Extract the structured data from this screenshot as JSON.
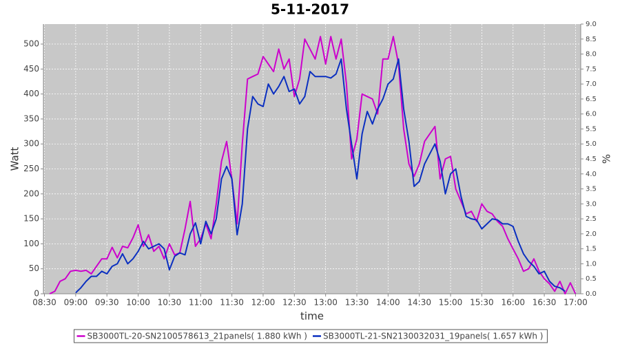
{
  "chart_data": {
    "type": "line",
    "title": "5-11-2017",
    "x_label": "time",
    "y_label": "Watt",
    "y2_label": "%",
    "x": [
      "08:35",
      "08:40",
      "08:45",
      "08:50",
      "08:55",
      "09:00",
      "09:05",
      "09:10",
      "09:15",
      "09:20",
      "09:25",
      "09:30",
      "09:35",
      "09:40",
      "09:45",
      "09:50",
      "09:55",
      "10:00",
      "10:05",
      "10:10",
      "10:15",
      "10:20",
      "10:25",
      "10:30",
      "10:35",
      "10:40",
      "10:45",
      "10:50",
      "10:55",
      "11:00",
      "11:05",
      "11:10",
      "11:15",
      "11:20",
      "11:25",
      "11:30",
      "11:35",
      "11:40",
      "11:45",
      "11:50",
      "11:55",
      "12:00",
      "12:05",
      "12:10",
      "12:15",
      "12:20",
      "12:25",
      "12:30",
      "12:35",
      "12:40",
      "12:45",
      "12:50",
      "12:55",
      "13:00",
      "13:05",
      "13:10",
      "13:15",
      "13:20",
      "13:25",
      "13:30",
      "13:35",
      "13:40",
      "13:45",
      "13:50",
      "13:55",
      "14:00",
      "14:05",
      "14:10",
      "14:15",
      "14:20",
      "14:25",
      "14:30",
      "14:35",
      "14:40",
      "14:45",
      "14:50",
      "14:55",
      "15:00",
      "15:05",
      "15:10",
      "15:15",
      "15:20",
      "15:25",
      "15:30",
      "15:35",
      "15:40",
      "15:45",
      "15:50",
      "15:55",
      "16:00",
      "16:05",
      "16:10",
      "16:15",
      "16:20",
      "16:25",
      "16:30",
      "16:35",
      "16:40",
      "16:45",
      "16:50",
      "16:55",
      "17:00"
    ],
    "series": [
      {
        "name": "SB3000TL-20-SN2100578613_21panels( 1.880 kWh )",
        "color": "#cc00cc",
        "values": [
          0,
          5,
          25,
          30,
          45,
          47,
          45,
          47,
          40,
          55,
          70,
          70,
          93,
          72,
          95,
          92,
          112,
          138,
          95,
          118,
          85,
          95,
          70,
          100,
          78,
          82,
          130,
          185,
          95,
          110,
          140,
          110,
          180,
          265,
          305,
          230,
          140,
          300,
          430,
          435,
          440,
          475,
          460,
          445,
          490,
          450,
          470,
          395,
          430,
          510,
          490,
          470,
          515,
          460,
          515,
          470,
          510,
          420,
          270,
          310,
          400,
          395,
          390,
          360,
          470,
          470,
          515,
          460,
          330,
          260,
          235,
          260,
          305,
          320,
          335,
          230,
          270,
          275,
          210,
          185,
          160,
          165,
          145,
          180,
          165,
          160,
          145,
          135,
          110,
          90,
          70,
          45,
          50,
          70,
          45,
          30,
          20,
          5,
          25,
          0,
          22,
          0
        ]
      },
      {
        "name": "SB3000TL-21-SN2130032031_19panels( 1.657 kWh )",
        "color": "#0a2fc0",
        "values": [
          null,
          null,
          null,
          null,
          null,
          2,
          12,
          25,
          35,
          35,
          45,
          40,
          55,
          60,
          80,
          60,
          70,
          85,
          105,
          90,
          95,
          100,
          90,
          48,
          75,
          82,
          78,
          120,
          142,
          100,
          145,
          120,
          150,
          230,
          255,
          230,
          118,
          180,
          330,
          395,
          380,
          375,
          420,
          400,
          415,
          435,
          405,
          410,
          380,
          395,
          445,
          435,
          435,
          435,
          432,
          440,
          470,
          370,
          300,
          230,
          320,
          365,
          340,
          370,
          390,
          420,
          430,
          470,
          370,
          305,
          215,
          225,
          260,
          280,
          300,
          265,
          200,
          240,
          250,
          195,
          155,
          150,
          148,
          130,
          140,
          150,
          148,
          140,
          140,
          135,
          105,
          80,
          65,
          55,
          40,
          45,
          25,
          15,
          12,
          5,
          null,
          null
        ]
      }
    ],
    "xlim": [
      "08:29",
      "17:05"
    ],
    "xticks": [
      "08:30",
      "09:00",
      "09:30",
      "10:00",
      "10:30",
      "11:00",
      "11:30",
      "12:00",
      "12:30",
      "13:00",
      "13:30",
      "14:00",
      "14:30",
      "15:00",
      "15:30",
      "16:00",
      "16:30",
      "17:00"
    ],
    "ylim": [
      0,
      540
    ],
    "yticks": [
      0,
      50,
      100,
      150,
      200,
      250,
      300,
      350,
      400,
      450,
      500
    ],
    "y2lim": [
      0,
      9
    ],
    "y2ticks": [
      {
        "value": 0,
        "label": "0.0"
      },
      0.5,
      {
        "value": 1,
        "label": "1.0"
      },
      1.5,
      {
        "value": 2,
        "label": "2.0"
      },
      2.5,
      {
        "value": 3,
        "label": "3.0"
      },
      3.5,
      {
        "value": 4,
        "label": "4.0"
      },
      4.5,
      {
        "value": 5,
        "label": "5.0"
      },
      5.5,
      {
        "value": 6,
        "label": "6.0"
      },
      6.5,
      {
        "value": 7,
        "label": "7.0"
      },
      7.5,
      {
        "value": 8,
        "label": "8.0"
      },
      8.5,
      {
        "value": 9,
        "label": "9.0"
      }
    ],
    "grid": true,
    "legend": "bottom",
    "plot_background": "#c8c8c8"
  }
}
